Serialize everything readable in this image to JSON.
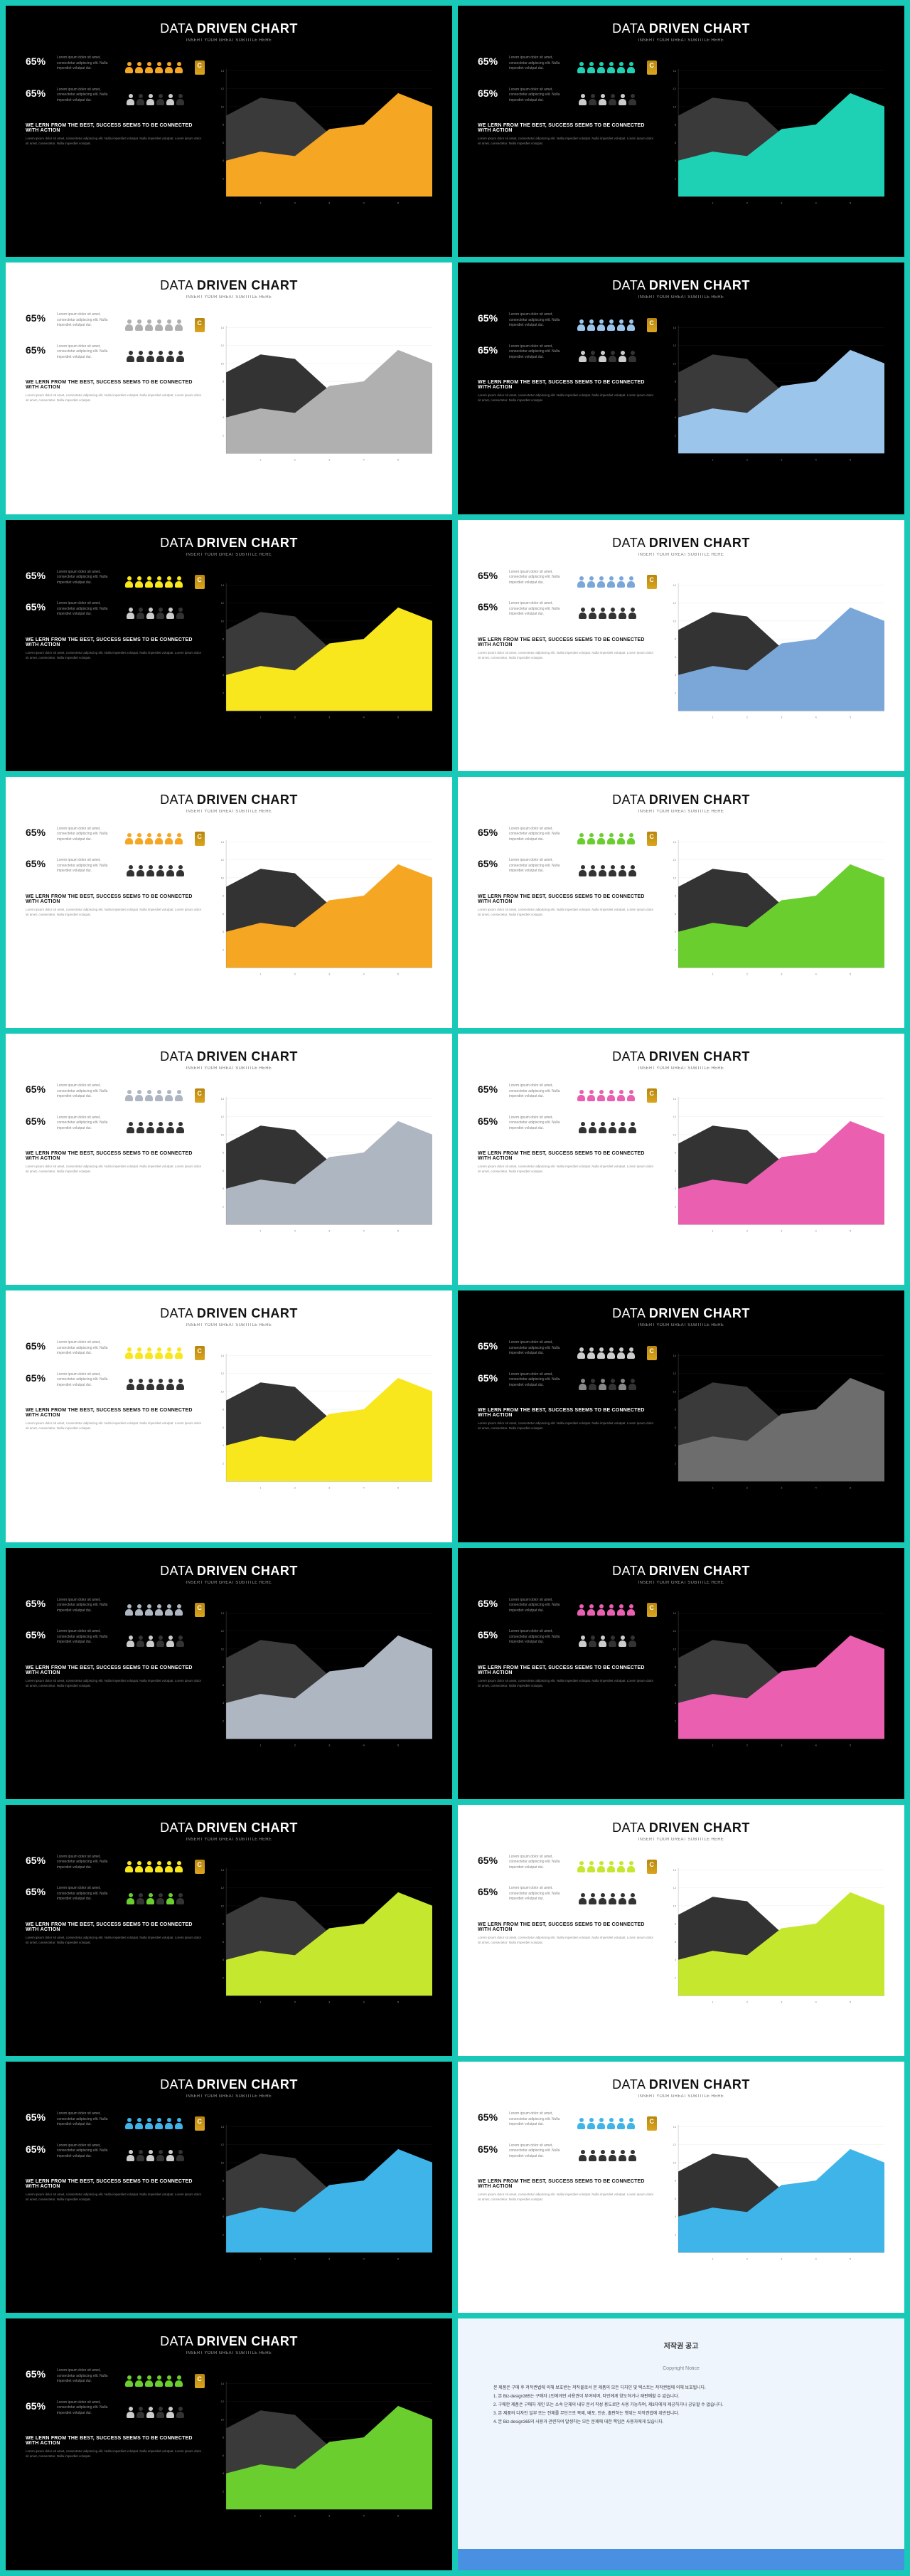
{
  "page_background": "#18c9b8",
  "title_thin": "DATA ",
  "title_bold": "DRIVEN CHART",
  "subtitle": "INSERT YOUR GREAT SUBTITLE HERE",
  "percent": "65%",
  "stat_lorem": "Lorem ipsum dolor sit amet, consectetur adipiscing elit. Nulla imperdiet volutpat dui.",
  "headline": "WE LERN FROM THE BEST, SUCCESS SEEMS TO BE CONNECTED WITH ACTION",
  "footer_lorem": "Lorem ipsum dolor sit amet, consectetur adipiscing elit. Nulla imperdiet volutpat. Nulla imperdiet volutpat. Lorem ipsum dolor sit amet, consectetur. Nulla imperdiet volutpat.",
  "chart": {
    "type": "area",
    "xlim": [
      0,
      6
    ],
    "ylim": [
      0,
      14
    ],
    "y_ticks": [
      2,
      4,
      6,
      8,
      10,
      12,
      14
    ],
    "x_ticks": [
      1,
      2,
      3,
      4,
      5
    ],
    "series_back": {
      "label": "dark",
      "points": [
        [
          0,
          9
        ],
        [
          1,
          11
        ],
        [
          2,
          10.5
        ],
        [
          3,
          7
        ],
        [
          4,
          7.5
        ],
        [
          5,
          9
        ],
        [
          6,
          8
        ]
      ]
    },
    "series_front": {
      "label": "accent",
      "points": [
        [
          0,
          4
        ],
        [
          1,
          5
        ],
        [
          2,
          4.5
        ],
        [
          3,
          7.5
        ],
        [
          4,
          8
        ],
        [
          5,
          11.5
        ],
        [
          6,
          10
        ]
      ]
    }
  },
  "slides": [
    {
      "bg": "dark",
      "accent": "#f5a623",
      "icons_top": "#f5a623",
      "icons_bottom": "#cccccc",
      "back_fill": "#3a3a3a"
    },
    {
      "bg": "dark",
      "accent": "#1fd1b4",
      "icons_top": "#1fd1b4",
      "icons_bottom": "#cccccc",
      "back_fill": "#3a3a3a"
    },
    {
      "bg": "light",
      "accent": "#b0b0b0",
      "icons_top": "#b0b0b0",
      "icons_bottom": "#333333",
      "back_fill": "#333333"
    },
    {
      "bg": "dark",
      "accent": "#9cc5ec",
      "icons_top": "#9cc5ec",
      "icons_bottom": "#cccccc",
      "back_fill": "#3a3a3a"
    },
    {
      "bg": "dark",
      "accent": "#f8e71c",
      "icons_top": "#f8e71c",
      "icons_bottom": "#cccccc",
      "back_fill": "#3a3a3a"
    },
    {
      "bg": "light",
      "accent": "#7aa7d8",
      "icons_top": "#7aa7d8",
      "icons_bottom": "#333333",
      "back_fill": "#333333"
    },
    {
      "bg": "light",
      "accent": "#f5a623",
      "icons_top": "#f5a623",
      "icons_bottom": "#333333",
      "back_fill": "#333333"
    },
    {
      "bg": "light",
      "accent": "#6bce2f",
      "icons_top": "#6bce2f",
      "icons_bottom": "#333333",
      "back_fill": "#333333"
    },
    {
      "bg": "light",
      "accent": "#aeb6c1",
      "icons_top": "#aeb6c1",
      "icons_bottom": "#333333",
      "back_fill": "#333333"
    },
    {
      "bg": "light",
      "accent": "#ea5fb0",
      "icons_top": "#ea5fb0",
      "icons_bottom": "#333333",
      "back_fill": "#333333"
    },
    {
      "bg": "light",
      "accent": "#f8e71c",
      "icons_top": "#f8e71c",
      "icons_bottom": "#333333",
      "back_fill": "#333333"
    },
    {
      "bg": "dark",
      "accent": "#6d6d6d",
      "icons_top": "#cccccc",
      "icons_bottom": "#888888",
      "back_fill": "#3a3a3a"
    },
    {
      "bg": "dark",
      "accent": "#aeb6c1",
      "icons_top": "#aeb6c1",
      "icons_bottom": "#cccccc",
      "back_fill": "#3a3a3a"
    },
    {
      "bg": "dark",
      "accent": "#ea5fb0",
      "icons_top": "#ea5fb0",
      "icons_bottom": "#cccccc",
      "back_fill": "#3a3a3a"
    },
    {
      "bg": "dark",
      "accent": "#c5e82e",
      "icons_top": "#f8e71c",
      "icons_bottom": "#6bce2f",
      "back_fill": "#3a3a3a"
    },
    {
      "bg": "light",
      "accent": "#c5e82e",
      "icons_top": "#c5e82e",
      "icons_bottom": "#333333",
      "back_fill": "#333333"
    },
    {
      "bg": "dark",
      "accent": "#3fb4e8",
      "icons_top": "#3fb4e8",
      "icons_bottom": "#cccccc",
      "back_fill": "#3a3a3a"
    },
    {
      "bg": "light",
      "accent": "#3fb4e8",
      "icons_top": "#3fb4e8",
      "icons_bottom": "#333333",
      "back_fill": "#333333"
    },
    {
      "bg": "dark",
      "accent": "#6bce2f",
      "icons_top": "#6bce2f",
      "icons_bottom": "#cccccc",
      "back_fill": "#3a3a3a"
    }
  ],
  "copyright": {
    "title": "저작권 공고",
    "subtitle": "Copyright Notice",
    "lines": [
      "본 제품은 구매 후 저작권법에 의해 보호받는 저작물로서 본 제품의 모든 디자인 및 텍스트는 저작권법에 의해 보호됩니다.",
      "1. 본 Biz-design365는 구매자 1인에게만 사용권이 부여되며, 타인에게 양도하거나 재판매할 수 없습니다.",
      "2. 구매한 제품은 구매자 개인 또는 소속 단체의 내부 문서 작성 용도로만 사용 가능하며, 제3자에게 제공하거나 공유할 수 없습니다.",
      "3. 본 제품의 디자인 일부 또는 전체를 무단으로 복제, 배포, 전송, 출판하는 행위는 저작권법에 위반됩니다.",
      "4. 본 Biz-design365의 사용과 관련하여 발생하는 모든 문제에 대한 책임은 사용자에게 있습니다."
    ]
  }
}
